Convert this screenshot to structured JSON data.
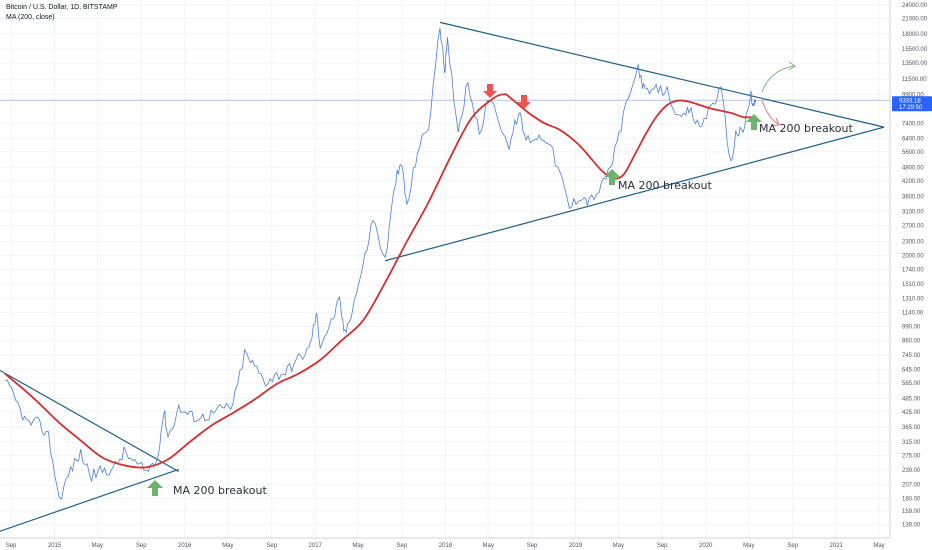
{
  "legend": {
    "title": "Bitcoin / U.S. Dollar, 1D, BITSTAMP",
    "indicator": "MA (200, close)"
  },
  "price_badge": {
    "price": "9333.18",
    "countdown": "17:29:50"
  },
  "colors": {
    "price_line": "#4a7fd6",
    "ma_line": "#d32f2f",
    "trend_line": "#1e5f8a",
    "up_arrow": "#6db36d",
    "down_arrow": "#ef5350",
    "badge": "#2962ff"
  },
  "annotations": [
    {
      "text": "MA 200 breakout"
    },
    {
      "text": "MA 200 breakout"
    },
    {
      "text": "MA 200 breakout"
    }
  ],
  "chart_data": {
    "type": "line",
    "y_scale": "log",
    "ylim": [
      129,
      24000
    ],
    "y_ticks": [
      "24000.00",
      "21000.00",
      "18000.00",
      "15500.00",
      "13500.00",
      "11500.00",
      "9900.00",
      "7400.00",
      "6400.00",
      "5600.00",
      "4800.00",
      "4200.00",
      "3600.00",
      "3100.00",
      "2700.00",
      "2300.00",
      "2000.00",
      "1740.00",
      "1510.00",
      "1310.00",
      "1140.00",
      "990.00",
      "860.00",
      "745.00",
      "645.00",
      "565.00",
      "485.00",
      "425.00",
      "365.00",
      "315.00",
      "275.00",
      "239.00",
      "207.00",
      "180.00",
      "159.00",
      "139.00"
    ],
    "x_ticks": [
      "Sep",
      "2015",
      "May",
      "Sep",
      "2016",
      "May",
      "Sep",
      "2017",
      "May",
      "Sep",
      "2018",
      "May",
      "Sep",
      "2019",
      "May",
      "Sep",
      "2020",
      "May",
      "Sep",
      "2021",
      "May"
    ],
    "series": [
      {
        "points": [
          [
            "2014-08-15",
            580
          ],
          [
            "2014-09-15",
            470
          ],
          [
            "2014-10-15",
            380
          ],
          [
            "2014-11-15",
            380
          ],
          [
            "2014-12-15",
            335
          ],
          [
            "2015-01-14",
            178
          ],
          [
            "2015-02-15",
            240
          ],
          [
            "2015-03-15",
            280
          ],
          [
            "2015-04-15",
            225
          ],
          [
            "2015-05-15",
            238
          ],
          [
            "2015-06-15",
            240
          ],
          [
            "2015-07-15",
            285
          ],
          [
            "2015-08-15",
            255
          ],
          [
            "2015-09-15",
            235
          ],
          [
            "2015-10-15",
            265
          ],
          [
            "2015-11-04",
            430
          ],
          [
            "2015-11-15",
            330
          ],
          [
            "2015-12-15",
            440
          ],
          [
            "2016-01-15",
            410
          ],
          [
            "2016-02-15",
            400
          ],
          [
            "2016-03-15",
            415
          ],
          [
            "2016-04-15",
            440
          ],
          [
            "2016-05-15",
            450
          ],
          [
            "2016-06-17",
            760
          ],
          [
            "2016-07-15",
            665
          ],
          [
            "2016-08-15",
            575
          ],
          [
            "2016-09-15",
            610
          ],
          [
            "2016-10-15",
            640
          ],
          [
            "2016-11-15",
            720
          ],
          [
            "2016-12-15",
            790
          ],
          [
            "2017-01-04",
            1120
          ],
          [
            "2017-01-15",
            830
          ],
          [
            "2017-02-15",
            1030
          ],
          [
            "2017-03-10",
            1280
          ],
          [
            "2017-03-25",
            910
          ],
          [
            "2017-04-15",
            1190
          ],
          [
            "2017-05-15",
            1800
          ],
          [
            "2017-06-12",
            2900
          ],
          [
            "2017-07-16",
            1900
          ],
          [
            "2017-08-15",
            4300
          ],
          [
            "2017-09-02",
            4900
          ],
          [
            "2017-09-15",
            3200
          ],
          [
            "2017-10-15",
            5700
          ],
          [
            "2017-11-15",
            7200
          ],
          [
            "2017-12-17",
            19500
          ],
          [
            "2017-12-30",
            12500
          ],
          [
            "2018-01-07",
            16500
          ],
          [
            "2018-02-06",
            6900
          ],
          [
            "2018-03-05",
            11400
          ],
          [
            "2018-04-06",
            6600
          ],
          [
            "2018-05-05",
            9800
          ],
          [
            "2018-06-29",
            5900
          ],
          [
            "2018-07-25",
            8300
          ],
          [
            "2018-08-15",
            6300
          ],
          [
            "2018-09-15",
            6500
          ],
          [
            "2018-10-15",
            6400
          ],
          [
            "2018-11-20",
            4400
          ],
          [
            "2018-12-15",
            3200
          ],
          [
            "2019-01-15",
            3650
          ],
          [
            "2019-02-08",
            3400
          ],
          [
            "2019-03-15",
            3950
          ],
          [
            "2019-04-15",
            5100
          ],
          [
            "2019-05-15",
            7900
          ],
          [
            "2019-06-26",
            13000
          ],
          [
            "2019-07-15",
            10000
          ],
          [
            "2019-08-15",
            10300
          ],
          [
            "2019-09-15",
            10200
          ],
          [
            "2019-10-25",
            7500
          ],
          [
            "2019-11-15",
            8500
          ],
          [
            "2019-12-15",
            7100
          ],
          [
            "2020-01-15",
            8800
          ],
          [
            "2020-02-13",
            10400
          ],
          [
            "2020-03-12",
            4900
          ],
          [
            "2020-03-25",
            6700
          ],
          [
            "2020-04-15",
            6800
          ],
          [
            "2020-05-07",
            9900
          ],
          [
            "2020-05-12",
            8700
          ],
          [
            "2020-05-21",
            9333
          ]
        ]
      },
      {
        "points": [
          [
            "2014-08-15",
            620
          ],
          [
            "2014-11-01",
            490
          ],
          [
            "2015-01-15",
            380
          ],
          [
            "2015-03-15",
            320
          ],
          [
            "2015-05-15",
            270
          ],
          [
            "2015-07-15",
            250
          ],
          [
            "2015-09-15",
            245
          ],
          [
            "2015-11-15",
            265
          ],
          [
            "2016-01-15",
            315
          ],
          [
            "2016-03-15",
            370
          ],
          [
            "2016-05-15",
            420
          ],
          [
            "2016-07-15",
            480
          ],
          [
            "2016-09-15",
            560
          ],
          [
            "2016-11-15",
            620
          ],
          [
            "2017-01-15",
            710
          ],
          [
            "2017-03-15",
            860
          ],
          [
            "2017-05-15",
            1050
          ],
          [
            "2017-07-15",
            1520
          ],
          [
            "2017-09-15",
            2300
          ],
          [
            "2017-11-15",
            3400
          ],
          [
            "2018-01-15",
            5300
          ],
          [
            "2018-03-15",
            7800
          ],
          [
            "2018-05-15",
            9500
          ],
          [
            "2018-06-15",
            9900
          ],
          [
            "2018-07-01",
            9600
          ],
          [
            "2018-08-15",
            8400
          ],
          [
            "2018-10-01",
            7500
          ],
          [
            "2018-11-15",
            7000
          ],
          [
            "2018-12-15",
            6500
          ],
          [
            "2019-01-15",
            5900
          ],
          [
            "2019-02-15",
            5200
          ],
          [
            "2019-03-15",
            4650
          ],
          [
            "2019-04-15",
            4300
          ],
          [
            "2019-05-15",
            4450
          ],
          [
            "2019-06-15",
            5400
          ],
          [
            "2019-07-15",
            6600
          ],
          [
            "2019-08-15",
            7900
          ],
          [
            "2019-09-15",
            8900
          ],
          [
            "2019-10-15",
            9300
          ],
          [
            "2019-11-15",
            9200
          ],
          [
            "2019-12-15",
            8900
          ],
          [
            "2020-01-15",
            8600
          ],
          [
            "2020-02-15",
            8400
          ],
          [
            "2020-03-15",
            8200
          ],
          [
            "2020-04-15",
            7900
          ],
          [
            "2020-05-21",
            7900
          ]
        ]
      }
    ],
    "trendlines": [
      {
        "from": [
          "2014-08-01",
          640
        ],
        "to": [
          "2015-12-15",
          235
        ]
      },
      {
        "from": [
          "2014-08-01",
          130
        ],
        "to": [
          "2015-12-15",
          240
        ]
      },
      {
        "from": [
          "2017-12-17",
          20200
        ],
        "to": [
          "2021-05-15",
          7150
        ]
      },
      {
        "from": [
          "2017-07-16",
          1900
        ],
        "to": [
          "2021-05-15",
          7150
        ]
      }
    ],
    "horizontal_line": 9333.18
  }
}
